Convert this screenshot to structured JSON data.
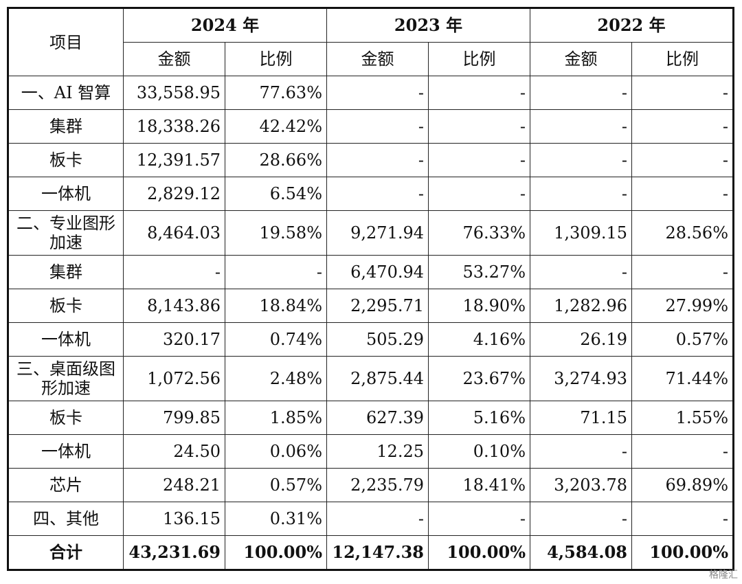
{
  "table": {
    "header_item": "项目",
    "years": [
      "2024 年",
      "2023 年",
      "2022 年"
    ],
    "sub_amount": "金额",
    "sub_ratio": "比例",
    "rows": [
      {
        "item": "一、AI 智算",
        "v": [
          "33,558.95",
          "77.63%",
          "-",
          "-",
          "-",
          "-"
        ]
      },
      {
        "item": "集群",
        "v": [
          "18,338.26",
          "42.42%",
          "-",
          "-",
          "-",
          "-"
        ]
      },
      {
        "item": "板卡",
        "v": [
          "12,391.57",
          "28.66%",
          "-",
          "-",
          "-",
          "-"
        ]
      },
      {
        "item": "一体机",
        "v": [
          "2,829.12",
          "6.54%",
          "-",
          "-",
          "-",
          "-"
        ]
      },
      {
        "item": "二、专业图形加速",
        "v": [
          "8,464.03",
          "19.58%",
          "9,271.94",
          "76.33%",
          "1,309.15",
          "28.56%"
        ]
      },
      {
        "item": "集群",
        "v": [
          "-",
          "-",
          "6,470.94",
          "53.27%",
          "-",
          "-"
        ]
      },
      {
        "item": "板卡",
        "v": [
          "8,143.86",
          "18.84%",
          "2,295.71",
          "18.90%",
          "1,282.96",
          "27.99%"
        ]
      },
      {
        "item": "一体机",
        "v": [
          "320.17",
          "0.74%",
          "505.29",
          "4.16%",
          "26.19",
          "0.57%"
        ]
      },
      {
        "item": "三、桌面级图形加速",
        "v": [
          "1,072.56",
          "2.48%",
          "2,875.44",
          "23.67%",
          "3,274.93",
          "71.44%"
        ]
      },
      {
        "item": "板卡",
        "v": [
          "799.85",
          "1.85%",
          "627.39",
          "5.16%",
          "71.15",
          "1.55%"
        ]
      },
      {
        "item": "一体机",
        "v": [
          "24.50",
          "0.06%",
          "12.25",
          "0.10%",
          "-",
          "-"
        ]
      },
      {
        "item": "芯片",
        "v": [
          "248.21",
          "0.57%",
          "2,235.79",
          "18.41%",
          "3,203.78",
          "69.89%"
        ]
      },
      {
        "item": "四、其他",
        "v": [
          "136.15",
          "0.31%",
          "-",
          "-",
          "-",
          "-"
        ]
      }
    ],
    "total": {
      "item": "合计",
      "v": [
        "43,231.69",
        "100.00%",
        "12,147.38",
        "100.00%",
        "4,584.08",
        "100.00%"
      ]
    }
  },
  "watermark": "格隆汇"
}
